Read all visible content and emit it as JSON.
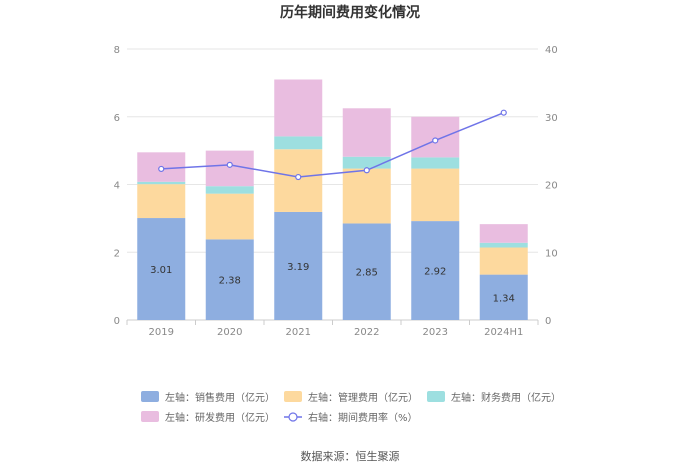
{
  "chart_data": {
    "type": "bar",
    "title": "历年期间费用变化情况",
    "categories": [
      "2019",
      "2020",
      "2021",
      "2022",
      "2023",
      "2024H1"
    ],
    "left_axis": {
      "ylim": [
        0,
        8
      ],
      "ticks": [
        "0",
        "2",
        "4",
        "6",
        "8"
      ]
    },
    "right_axis": {
      "ylim": [
        0,
        40
      ],
      "ticks": [
        "0",
        "10",
        "20",
        "30",
        "40"
      ]
    },
    "series": [
      {
        "name": "左轴：销售费用（亿元）",
        "kind": "bar",
        "axis": "left",
        "color": "#8eaee0",
        "values": [
          3.01,
          2.38,
          3.19,
          2.85,
          2.92,
          1.34
        ],
        "labels": [
          "3.01",
          "2.38",
          "3.19",
          "2.85",
          "2.92",
          "1.34"
        ]
      },
      {
        "name": "左轴：管理费用（亿元）",
        "kind": "bar",
        "axis": "left",
        "color": "#fdd99e",
        "values": [
          1.0,
          1.35,
          1.85,
          1.62,
          1.55,
          0.8
        ]
      },
      {
        "name": "左轴：财务费用（亿元）",
        "kind": "bar",
        "axis": "left",
        "color": "#9ddfe0",
        "values": [
          0.07,
          0.22,
          0.38,
          0.35,
          0.33,
          0.14
        ]
      },
      {
        "name": "左轴：研发费用（亿元）",
        "kind": "bar",
        "axis": "left",
        "color": "#e9bde0",
        "values": [
          0.87,
          1.05,
          1.68,
          1.43,
          1.2,
          0.55
        ]
      },
      {
        "name": "右轴：期间费用率（%）",
        "kind": "line",
        "axis": "right",
        "color": "#6f74e8",
        "values": [
          22.3,
          22.9,
          21.1,
          22.1,
          26.5,
          30.6
        ]
      }
    ],
    "source": "数据来源：恒生聚源"
  }
}
